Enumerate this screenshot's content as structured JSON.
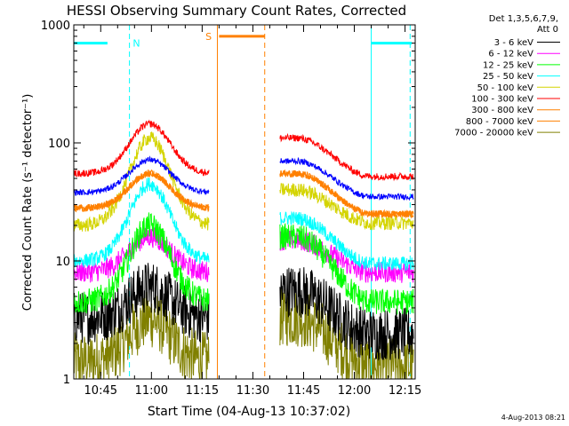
{
  "chart_data": {
    "type": "line",
    "title": "HESSI Observing Summary Count Rates, Corrected",
    "xlabel": "Start Time (04-Aug-13 10:37:02)",
    "ylabel": "Corrected Count Rate (s⁻¹ detector⁻¹)",
    "y_scale": "log",
    "ylim": [
      1,
      1000
    ],
    "y_ticks": [
      1,
      10,
      100,
      1000
    ],
    "y_tick_labels": [
      "1",
      "10",
      "100",
      "1000"
    ],
    "xlim_minutes": [
      37.04,
      138.0
    ],
    "x_ticks_minutes": [
      45,
      60,
      75,
      90,
      105,
      120,
      135
    ],
    "x_tick_labels": [
      "10:45",
      "11:00",
      "11:15",
      "11:30",
      "11:45",
      "12:00",
      "12:15"
    ],
    "grid": false,
    "legend": {
      "placement": "right",
      "header": [
        "Det 1,3,5,6,7,9,",
        "Att 0"
      ]
    },
    "data_gap_minutes": [
      79.5,
      98.0
    ],
    "series": [
      {
        "name": "3 - 6 keV",
        "color": "#000000",
        "left_base": 3.3,
        "left_peak": 6.0,
        "right_start": 5.6,
        "right_end": 2.4,
        "noise": 0.45
      },
      {
        "name": "6 - 12 keV",
        "color": "#ff00ff",
        "left_base": 8.0,
        "left_peak": 16.0,
        "right_start": 15.0,
        "right_end": 8.0,
        "noise": 0.18
      },
      {
        "name": "12 - 25 keV",
        "color": "#00ff00",
        "left_base": 4.5,
        "left_peak": 20.0,
        "right_start": 16.0,
        "right_end": 4.5,
        "noise": 0.22
      },
      {
        "name": "25 - 50 keV",
        "color": "#00ffff",
        "left_base": 10.0,
        "left_peak": 45.0,
        "right_start": 23.0,
        "right_end": 9.5,
        "noise": 0.12
      },
      {
        "name": "50 - 100 keV",
        "color": "#d4d400",
        "left_base": 20.0,
        "left_peak": 110.0,
        "right_start": 40.0,
        "right_end": 21.0,
        "noise": 0.12
      },
      {
        "name": "100 - 300 keV",
        "color": "#ff0000",
        "left_base": 55.0,
        "left_peak": 145.0,
        "right_start": 110.0,
        "right_end": 52.0,
        "noise": 0.06
      },
      {
        "name": "300 - 800 keV",
        "color": "#ff8000",
        "left_base": 28.0,
        "left_peak": 55.0,
        "right_start": 55.0,
        "right_end": 25.0,
        "noise": 0.06
      },
      {
        "name": "800 - 7000 keV",
        "color": "#ff8000",
        "left_base": 28.0,
        "left_peak": 55.0,
        "right_start": 55.0,
        "right_end": 25.0,
        "noise": 0.06
      },
      {
        "name": "7000 - 20000 keV",
        "color": "#808000",
        "left_base": 1.4,
        "left_peak": 3.2,
        "right_start": 3.3,
        "right_end": 1.3,
        "noise": 0.5
      }
    ],
    "blue_series": {
      "color": "#0000ff",
      "left_base": 38.0,
      "left_peak": 72.0,
      "right_start": 70.0,
      "right_end": 35.0,
      "noise": 0.05
    },
    "annotations": [
      {
        "label": "N",
        "color": "#00ffff",
        "bar": [
          37.04,
          47.0
        ],
        "bar_y": 700,
        "dashed_lines": [
          53.5
        ],
        "solid_lines": [],
        "text_at": 54.5
      },
      {
        "label": "S",
        "color": "#ff8000",
        "bar": [
          80.0,
          93.5
        ],
        "bar_y": 800,
        "dashed_lines": [
          93.5
        ],
        "solid_lines": [
          79.5
        ],
        "text_at": 76.0
      },
      {
        "label": "",
        "color": "#00ffff",
        "bar": [
          125.0,
          137.0
        ],
        "bar_y": 700,
        "dashed_lines": [
          136.5
        ],
        "solid_lines": [
          125.0
        ],
        "text_at": 0
      }
    ]
  },
  "footer": {
    "timestamp": "4-Aug-2013 08:21"
  }
}
